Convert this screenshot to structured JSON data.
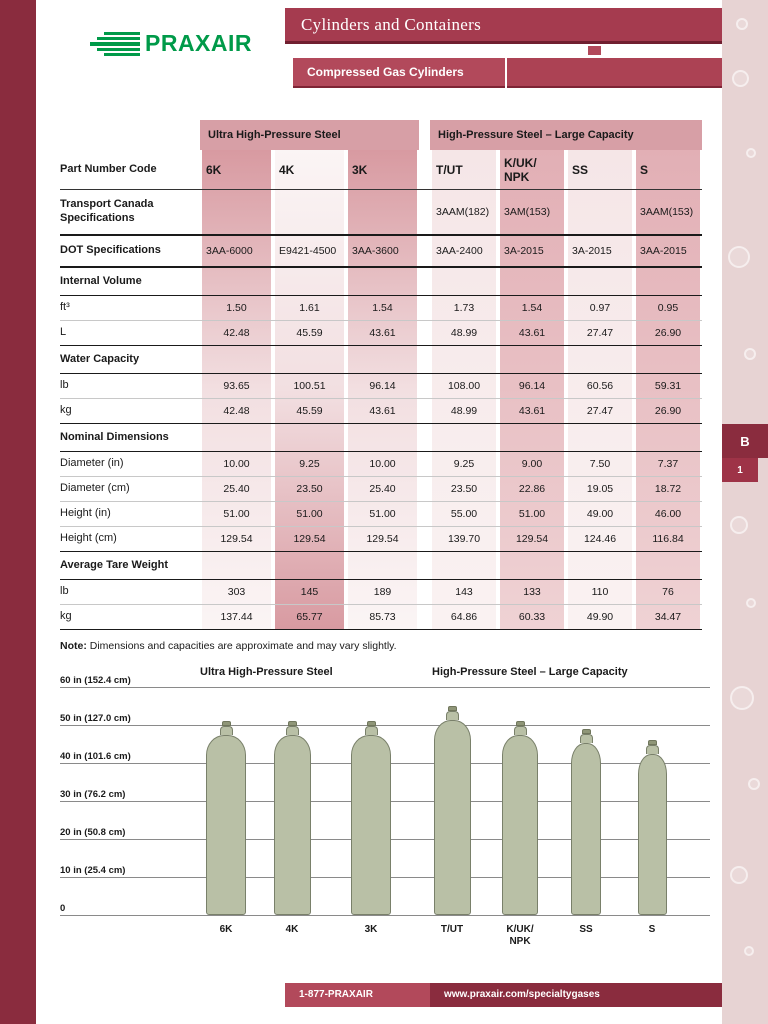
{
  "header": {
    "logo_text": "PRAXAIR",
    "banner_title": "Cylinders and Containers",
    "banner_subtitle": "Compressed Gas Cylinders"
  },
  "side_tab": {
    "letter": "B",
    "number": "1"
  },
  "footer": {
    "phone": "1-877-PRAXAIR",
    "website": "www.praxair.com/specialtygases"
  },
  "table": {
    "corner_label": "Part Number Code",
    "groups": [
      {
        "label": "Ultra High-Pressure Steel",
        "span": 3
      },
      {
        "label": "High-Pressure Steel – Large Capacity",
        "span": 4
      }
    ],
    "columns": [
      "6K",
      "4K",
      "3K",
      "T/UT",
      "K/UK/\nNPK",
      "SS",
      "S"
    ],
    "spec_rows": [
      {
        "label": "Transport Canada Specifications",
        "values": [
          "",
          "",
          "",
          "3AAM(182)",
          "3AM(153)",
          "",
          "3AAM(153)"
        ]
      },
      {
        "label": "DOT Specifications",
        "values": [
          "3AA-6000",
          "E9421-4500",
          "3AA-3600",
          "3AA-2400",
          "3A-2015",
          "3A-2015",
          "3AA-2015"
        ]
      }
    ],
    "sections": [
      {
        "title": "Internal Volume",
        "rows": [
          {
            "label": "ft³",
            "values": [
              "1.50",
              "1.61",
              "1.54",
              "1.73",
              "1.54",
              "0.97",
              "0.95"
            ]
          },
          {
            "label": "L",
            "values": [
              "42.48",
              "45.59",
              "43.61",
              "48.99",
              "43.61",
              "27.47",
              "26.90"
            ]
          }
        ]
      },
      {
        "title": "Water Capacity",
        "rows": [
          {
            "label": "lb",
            "values": [
              "93.65",
              "100.51",
              "96.14",
              "108.00",
              "96.14",
              "60.56",
              "59.31"
            ]
          },
          {
            "label": "kg",
            "values": [
              "42.48",
              "45.59",
              "43.61",
              "48.99",
              "43.61",
              "27.47",
              "26.90"
            ]
          }
        ]
      },
      {
        "title": "Nominal Dimensions",
        "rows": [
          {
            "label": "Diameter (in)",
            "values": [
              "10.00",
              "9.25",
              "10.00",
              "9.25",
              "9.00",
              "7.50",
              "7.37"
            ]
          },
          {
            "label": "Diameter (cm)",
            "values": [
              "25.40",
              "23.50",
              "25.40",
              "23.50",
              "22.86",
              "19.05",
              "18.72"
            ]
          },
          {
            "label": "Height (in)",
            "values": [
              "51.00",
              "51.00",
              "51.00",
              "55.00",
              "51.00",
              "49.00",
              "46.00"
            ]
          },
          {
            "label": "Height (cm)",
            "values": [
              "129.54",
              "129.54",
              "129.54",
              "139.70",
              "129.54",
              "124.46",
              "116.84"
            ]
          }
        ]
      },
      {
        "title": "Average Tare Weight",
        "rows": [
          {
            "label": "lb",
            "values": [
              "303",
              "145",
              "189",
              "143",
              "133",
              "110",
              "76"
            ]
          },
          {
            "label": "kg",
            "values": [
              "137.44",
              "65.77",
              "85.73",
              "64.86",
              "60.33",
              "49.90",
              "34.47"
            ]
          }
        ]
      }
    ]
  },
  "note": {
    "prefix": "Note:",
    "text": "Dimensions and capacities are approximate and may vary slightly."
  },
  "chart_data": {
    "type": "bar",
    "group_titles": [
      "Ultra High-Pressure Steel",
      "High-Pressure Steel – Large Capacity"
    ],
    "ylim": [
      0,
      60
    ],
    "y_ticks": [
      {
        "inches": 60,
        "label": "60 in (152.4 cm)"
      },
      {
        "inches": 50,
        "label": "50 in (127.0 cm)"
      },
      {
        "inches": 40,
        "label": "40 in (101.6 cm)"
      },
      {
        "inches": 30,
        "label": "30 in (76.2 cm)"
      },
      {
        "inches": 20,
        "label": "20 in (50.8 cm)"
      },
      {
        "inches": 10,
        "label": "10 in (25.4 cm)"
      },
      {
        "inches": 0,
        "label": "0"
      }
    ],
    "categories": [
      "6K",
      "4K",
      "3K",
      "T/UT",
      "K/UK/\nNPK",
      "SS",
      "S"
    ],
    "series": [
      {
        "name": "Height (in)",
        "values": [
          51,
          51,
          51,
          55,
          51,
          49,
          46
        ]
      },
      {
        "name": "Diameter (in)",
        "values": [
          10.0,
          9.25,
          10.0,
          9.25,
          9.0,
          7.5,
          7.37
        ]
      }
    ]
  },
  "colors": {
    "maroon_dark": "#8A2C3E",
    "banner_red": "#A53B4F",
    "sub_red": "#B2495B",
    "stripe_pink": "#D89AA1",
    "praxair_green": "#009A49",
    "cylinder_fill": "#B9C0A6",
    "cylinder_border": "#79806A",
    "side_strip": "#E7D3D3"
  }
}
